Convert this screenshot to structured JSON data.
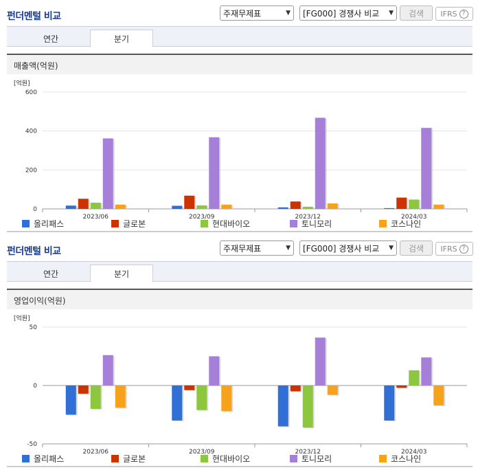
{
  "panels": [
    {
      "title": "펀더멘털 비교",
      "select1": "주재무제표",
      "select2": "[FG000] 경쟁사 비교",
      "search_label": "검색",
      "ifrs_label": "IFRS",
      "help_glyph": "?",
      "tabs": [
        "연간",
        "분기"
      ],
      "active_tab": "분기",
      "subtitle": "매출액(억원)",
      "unit_label": "[억원]"
    },
    {
      "title": "펀더멘털 비교",
      "select1": "주재무제표",
      "select2": "[FG000] 경쟁사 비교",
      "search_label": "검색",
      "ifrs_label": "IFRS",
      "help_glyph": "?",
      "tabs": [
        "연간",
        "분기"
      ],
      "active_tab": "분기",
      "subtitle": "영업이익(억원)",
      "unit_label": "[억원]"
    }
  ],
  "chart_data": [
    {
      "type": "bar",
      "title": "매출액(억원)",
      "ylabel": "[억원]",
      "categories": [
        "2023/06",
        "2023/09",
        "2023/12",
        "2024/03"
      ],
      "ylim": [
        0,
        600
      ],
      "yticks": [
        0,
        200,
        400,
        600
      ],
      "grid": true,
      "legend": "bottom",
      "series": [
        {
          "name": "올리패스",
          "color": "#2f6fd6",
          "values": [
            17,
            16,
            8,
            4
          ]
        },
        {
          "name": "글로본",
          "color": "#cc3300",
          "values": [
            52,
            68,
            38,
            58
          ]
        },
        {
          "name": "현대바이오",
          "color": "#8dc63f",
          "values": [
            32,
            18,
            11,
            48
          ]
        },
        {
          "name": "토니모리",
          "color": "#a57fd8",
          "values": [
            362,
            368,
            468,
            416
          ]
        },
        {
          "name": "코스나인",
          "color": "#f7a21b",
          "values": [
            22,
            22,
            28,
            22
          ]
        }
      ]
    },
    {
      "type": "bar",
      "title": "영업이익(억원)",
      "ylabel": "[억원]",
      "categories": [
        "2023/06",
        "2023/09",
        "2023/12",
        "2024/03"
      ],
      "ylim": [
        -50,
        50
      ],
      "yticks": [
        -50,
        0,
        50
      ],
      "grid": true,
      "legend": "bottom",
      "series": [
        {
          "name": "올리패스",
          "color": "#2f6fd6",
          "values": [
            -25,
            -30,
            -35,
            -30
          ]
        },
        {
          "name": "글로본",
          "color": "#cc3300",
          "values": [
            -7,
            -4,
            -5,
            -2
          ]
        },
        {
          "name": "현대바이오",
          "color": "#8dc63f",
          "values": [
            -20,
            -21,
            -36,
            13
          ]
        },
        {
          "name": "토니모리",
          "color": "#a57fd8",
          "values": [
            26,
            25,
            41,
            24
          ]
        },
        {
          "name": "코스나인",
          "color": "#f7a21b",
          "values": [
            -19,
            -22,
            -8,
            -17
          ]
        }
      ]
    }
  ]
}
